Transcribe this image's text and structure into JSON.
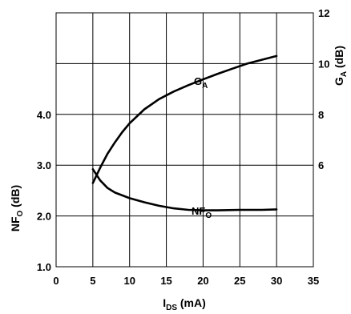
{
  "chart_data": {
    "type": "line",
    "x_axis": {
      "label_main": "I",
      "label_sub": "DS",
      "label_tail": " (mA)",
      "range": [
        0,
        35
      ],
      "ticks": [
        "0",
        "5",
        "10",
        "15",
        "20",
        "25",
        "30",
        "35"
      ]
    },
    "y_left": {
      "label_main": "NF",
      "label_sub": "O",
      "label_tail": " (dB)",
      "range": [
        1.0,
        6.0
      ],
      "ticks": [
        {
          "value": 1.0,
          "label": "1.0"
        },
        {
          "value": 2.0,
          "label": "2.0"
        },
        {
          "value": 3.0,
          "label": "3.0"
        },
        {
          "value": 4.0,
          "label": "4.0"
        }
      ]
    },
    "y_right": {
      "label_main": "G",
      "label_sub": "A",
      "label_tail": " (dB)",
      "range": [
        2,
        12
      ],
      "ticks": [
        {
          "value": 6,
          "label": "6"
        },
        {
          "value": 8,
          "label": "8"
        },
        {
          "value": 10,
          "label": "10"
        },
        {
          "value": 12,
          "label": "12"
        }
      ]
    },
    "grid": true,
    "series": [
      {
        "name_main": "G",
        "name_sub": "A",
        "axis": "right",
        "x": [
          5,
          6,
          7,
          8,
          9,
          10,
          12,
          14,
          16,
          18,
          20,
          22,
          24,
          26,
          28,
          30
        ],
        "y": [
          5.3,
          5.9,
          6.45,
          6.9,
          7.3,
          7.65,
          8.2,
          8.6,
          8.9,
          9.15,
          9.38,
          9.6,
          9.8,
          10.0,
          10.15,
          10.3
        ]
      },
      {
        "name_main": "NF",
        "name_sub": "O",
        "axis": "left",
        "x": [
          5,
          6,
          7,
          8,
          10,
          12,
          14,
          16,
          18,
          20,
          22,
          25,
          28,
          30
        ],
        "y": [
          2.92,
          2.7,
          2.55,
          2.46,
          2.35,
          2.27,
          2.2,
          2.15,
          2.12,
          2.11,
          2.11,
          2.12,
          2.12,
          2.13
        ]
      }
    ]
  }
}
